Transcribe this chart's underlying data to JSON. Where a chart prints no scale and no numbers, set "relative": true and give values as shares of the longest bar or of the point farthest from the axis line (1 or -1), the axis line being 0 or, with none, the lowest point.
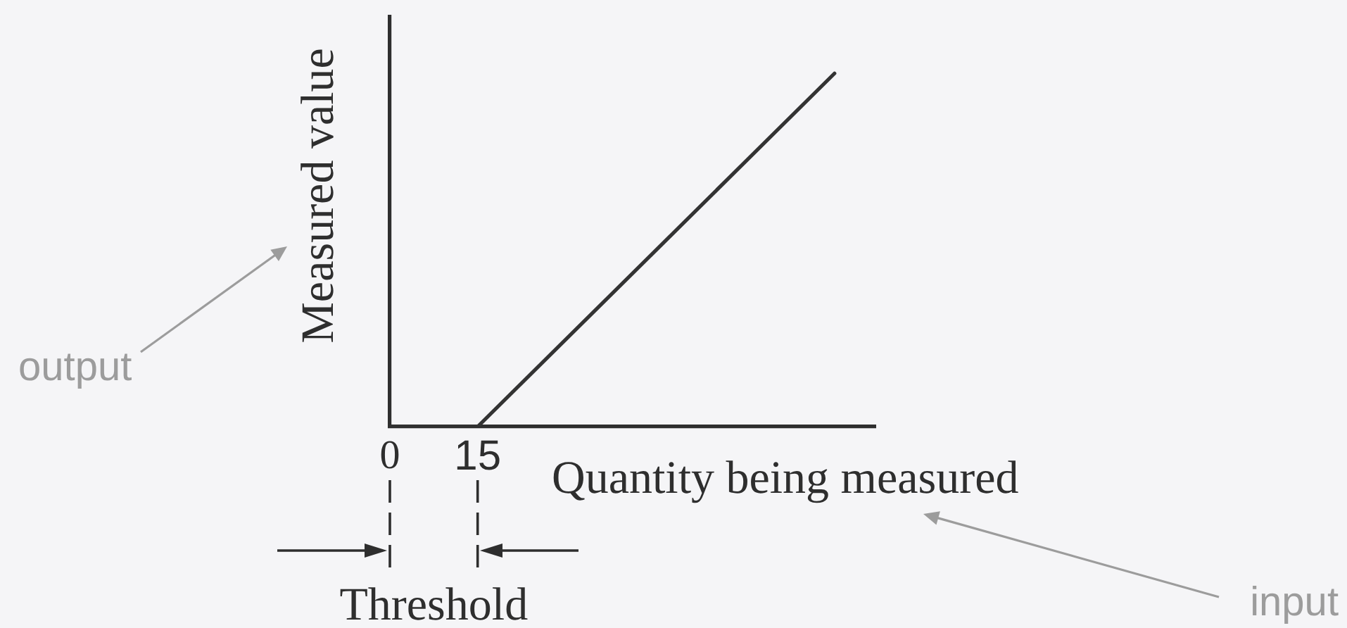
{
  "chart_data": {
    "type": "line",
    "xlabel": "Quantity being measured",
    "ylabel": "Measured value",
    "x": [
      0,
      15,
      76
    ],
    "values": [
      0,
      0,
      1
    ],
    "color": "#333333",
    "relative": true,
    "xlim": [
      0,
      83
    ],
    "xticks": [
      0,
      15
    ],
    "marker": "none",
    "annotations": [
      "output",
      "input",
      "Threshold"
    ]
  }
}
